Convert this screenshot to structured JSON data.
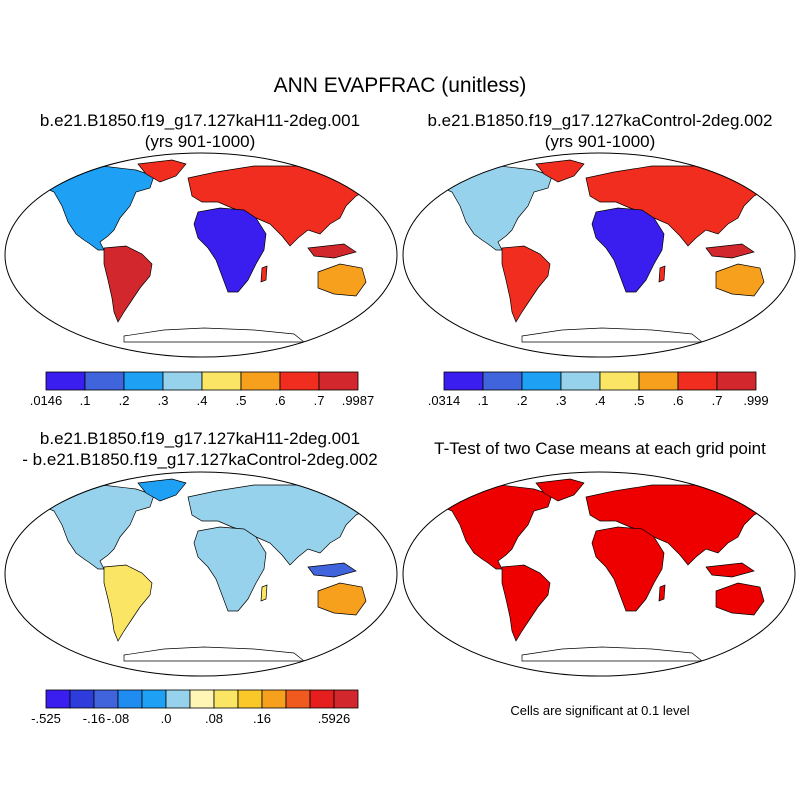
{
  "figure": {
    "title": "ANN EVAPFRAC (unitless)",
    "panel1": {
      "title_line1": "b.e21.B1850.f19_g17.127kaH11-2deg.001",
      "title_line2": "(yrs 901-1000)",
      "colorbar": {
        "colors": [
          "#3a1ef0",
          "#3f64dc",
          "#1ea0f5",
          "#96d2eb",
          "#fae664",
          "#f7a01e",
          "#f02d1e",
          "#d2282d"
        ],
        "labels": [
          ".0146",
          ".1",
          ".2",
          ".3",
          ".4",
          ".5",
          ".6",
          ".7",
          ".9987"
        ]
      },
      "palette": [
        "#3a1ef0",
        "#3f64dc",
        "#1ea0f5",
        "#96d2eb",
        "#fae664",
        "#f7a01e",
        "#f02d1e",
        "#d2282d"
      ]
    },
    "panel2": {
      "title_line1": "b.e21.B1850.f19_g17.127kaControl-2deg.002",
      "title_line2": "(yrs 901-1000)",
      "colorbar": {
        "colors": [
          "#3a1ef0",
          "#3f64dc",
          "#1ea0f5",
          "#96d2eb",
          "#fae664",
          "#f7a01e",
          "#f02d1e",
          "#d2282d"
        ],
        "labels": [
          ".0314",
          ".1",
          ".2",
          ".3",
          ".4",
          ".5",
          ".6",
          ".7",
          ".999"
        ]
      },
      "palette": [
        "#3a1ef0",
        "#3f64dc",
        "#1ea0f5",
        "#96d2eb",
        "#fae664",
        "#f7a01e",
        "#f02d1e",
        "#d2282d"
      ]
    },
    "panel3": {
      "title_line1": "b.e21.B1850.f19_g17.127kaH11-2deg.001",
      "title_line2": "- b.e21.B1850.f19_g17.127kaControl-2deg.002",
      "colorbar": {
        "colors": [
          "#3a1ef0",
          "#2f3cdc",
          "#3f64dc",
          "#1e8cf0",
          "#1ea0f5",
          "#96d2eb",
          "#fff5b4",
          "#fae664",
          "#fac828",
          "#f7a01e",
          "#f05a1e",
          "#e61e1e",
          "#d2282d"
        ],
        "labels": [
          "-.525",
          "",
          "-.16",
          "-.08",
          "",
          ".0",
          "",
          ".08",
          "",
          ".16",
          "",
          "",
          ".5926"
        ]
      },
      "palette": [
        "#1ea0f5",
        "#96d2eb",
        "#96d2eb",
        "#3f64dc",
        "#fff5b4",
        "#fae664",
        "#f7a01e"
      ]
    },
    "panel4": {
      "title": "T-Test of two Case means at each grid point",
      "note": "Cells are significant at 0.1 level",
      "color": "#ee0000"
    }
  }
}
